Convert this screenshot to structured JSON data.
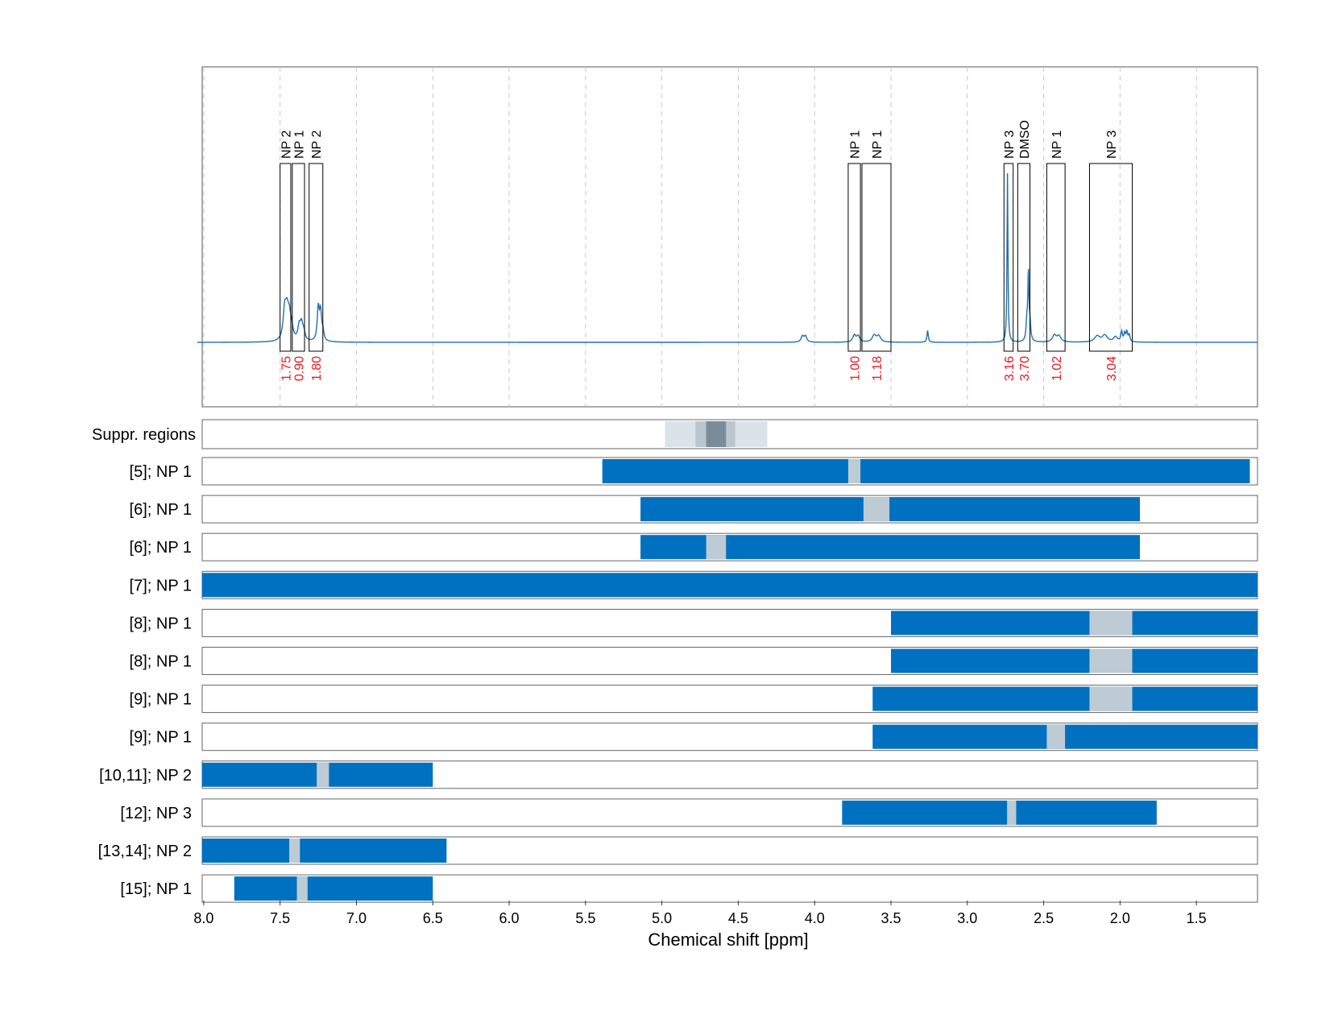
{
  "chart_data": {
    "type": "line",
    "title": "",
    "xlabel": "Chemical shift [ppm]",
    "ylabel": "",
    "x_reversed": true,
    "xlim": [
      8.01,
      1.1
    ],
    "x_ticks": [
      8.0,
      7.5,
      7.0,
      6.5,
      6.0,
      5.5,
      5.0,
      4.5,
      4.0,
      3.5,
      3.0,
      2.5,
      2.0,
      1.5
    ],
    "x_tick_labels": [
      "8.0",
      "7.5",
      "7.0",
      "6.5",
      "6.0",
      "5.5",
      "5.0",
      "4.5",
      "4.0",
      "3.5",
      "3.0",
      "2.5",
      "2.0",
      "1.5"
    ],
    "grid": "vertical dashed",
    "colors": {
      "spectrum": "#1f6fb4",
      "bar": "#0070c0",
      "gap": "#bccbd4",
      "integral_text": "#e8191f",
      "suppr_light": "#dbe3ea",
      "suppr_mid": "#b9c6d0",
      "suppr_dark": "#7a8c99"
    },
    "spectrum": {
      "baseline": 0.0,
      "peaks": [
        {
          "x": 7.47,
          "y": 0.17,
          "w": 0.012
        },
        {
          "x": 7.455,
          "y": 0.14,
          "w": 0.012
        },
        {
          "x": 7.44,
          "y": 0.12,
          "w": 0.012
        },
        {
          "x": 7.425,
          "y": 0.06,
          "w": 0.012
        },
        {
          "x": 7.375,
          "y": 0.08,
          "w": 0.01
        },
        {
          "x": 7.36,
          "y": 0.09,
          "w": 0.01
        },
        {
          "x": 7.345,
          "y": 0.05,
          "w": 0.01
        },
        {
          "x": 7.25,
          "y": 0.19,
          "w": 0.008
        },
        {
          "x": 7.235,
          "y": 0.16,
          "w": 0.008
        },
        {
          "x": 7.22,
          "y": 0.05,
          "w": 0.008
        },
        {
          "x": 4.08,
          "y": 0.035,
          "w": 0.01
        },
        {
          "x": 4.06,
          "y": 0.035,
          "w": 0.01
        },
        {
          "x": 3.74,
          "y": 0.04,
          "w": 0.012
        },
        {
          "x": 3.715,
          "y": 0.035,
          "w": 0.012
        },
        {
          "x": 3.61,
          "y": 0.04,
          "w": 0.015
        },
        {
          "x": 3.58,
          "y": 0.035,
          "w": 0.015
        },
        {
          "x": 3.26,
          "y": 0.07,
          "w": 0.005
        },
        {
          "x": 2.737,
          "y": 1.0,
          "w": 0.0035
        },
        {
          "x": 2.6,
          "y": 0.4,
          "w": 0.004
        },
        {
          "x": 2.61,
          "y": 0.12,
          "w": 0.006
        },
        {
          "x": 2.59,
          "y": 0.1,
          "w": 0.006
        },
        {
          "x": 2.43,
          "y": 0.04,
          "w": 0.015
        },
        {
          "x": 2.4,
          "y": 0.035,
          "w": 0.015
        },
        {
          "x": 2.15,
          "y": 0.035,
          "w": 0.02
        },
        {
          "x": 2.1,
          "y": 0.04,
          "w": 0.02
        },
        {
          "x": 2.03,
          "y": 0.03,
          "w": 0.015
        },
        {
          "x": 1.99,
          "y": 0.06,
          "w": 0.006
        },
        {
          "x": 1.97,
          "y": 0.05,
          "w": 0.006
        },
        {
          "x": 1.955,
          "y": 0.055,
          "w": 0.006
        },
        {
          "x": 1.94,
          "y": 0.04,
          "w": 0.006
        }
      ]
    },
    "integration_regions": [
      {
        "x1": 7.5,
        "x2": 7.43,
        "label": "NP 2",
        "integral": "1.75"
      },
      {
        "x1": 7.42,
        "x2": 7.34,
        "label": "NP 1",
        "integral": "0.90"
      },
      {
        "x1": 7.31,
        "x2": 7.22,
        "label": "NP 2",
        "integral": "1.80"
      },
      {
        "x1": 3.78,
        "x2": 3.7,
        "label": "NP 1",
        "integral": "1.00"
      },
      {
        "x1": 3.69,
        "x2": 3.5,
        "label": "NP 1",
        "integral": "1.18"
      },
      {
        "x1": 2.76,
        "x2": 2.7,
        "label": "NP 3",
        "integral": "3.16"
      },
      {
        "x1": 2.67,
        "x2": 2.59,
        "label": "DMSO",
        "integral": "3.70"
      },
      {
        "x1": 2.48,
        "x2": 2.36,
        "label": "NP 1",
        "integral": "1.02"
      },
      {
        "x1": 2.2,
        "x2": 1.92,
        "label": "NP 3",
        "integral": "3.04"
      }
    ],
    "suppression": {
      "label": "Suppr. regions",
      "bands": [
        {
          "x1": 4.98,
          "x2": 4.31,
          "level": "light"
        },
        {
          "x1": 4.78,
          "x2": 4.52,
          "level": "mid"
        },
        {
          "x1": 4.71,
          "x2": 4.58,
          "level": "dark"
        }
      ]
    },
    "tracks": [
      {
        "label": "[5]; NP 1",
        "start": 5.39,
        "end": 1.15,
        "gap": [
          3.78,
          3.7
        ]
      },
      {
        "label": "[6]; NP 1",
        "start": 5.14,
        "end": 1.87,
        "gap": [
          3.68,
          3.51
        ]
      },
      {
        "label": "[6]; NP 1",
        "start": 5.14,
        "end": 1.87,
        "gap": [
          4.71,
          4.58
        ]
      },
      {
        "label": "[7]; NP 1",
        "start": 8.01,
        "end": 1.1,
        "gap": null
      },
      {
        "label": "[8]; NP 1",
        "start": 3.5,
        "end": 1.1,
        "gap": [
          2.2,
          1.92
        ]
      },
      {
        "label": "[8]; NP 1",
        "start": 3.5,
        "end": 1.1,
        "gap": [
          2.2,
          1.92
        ]
      },
      {
        "label": "[9]; NP 1",
        "start": 3.62,
        "end": 1.1,
        "gap": [
          2.2,
          1.92
        ]
      },
      {
        "label": "[9]; NP 1",
        "start": 3.62,
        "end": 1.1,
        "gap": [
          2.48,
          2.36
        ]
      },
      {
        "label": "[10,11]; NP 2",
        "start": 8.01,
        "end": 6.5,
        "gap": [
          7.26,
          7.18
        ]
      },
      {
        "label": "[12]; NP 3",
        "start": 3.82,
        "end": 1.76,
        "gap": [
          2.74,
          2.68
        ]
      },
      {
        "label": "[13,14]; NP 2",
        "start": 8.01,
        "end": 6.41,
        "gap": [
          7.44,
          7.37
        ]
      },
      {
        "label": "[15]; NP 1",
        "start": 7.8,
        "end": 6.5,
        "gap": [
          7.39,
          7.32
        ]
      }
    ]
  }
}
